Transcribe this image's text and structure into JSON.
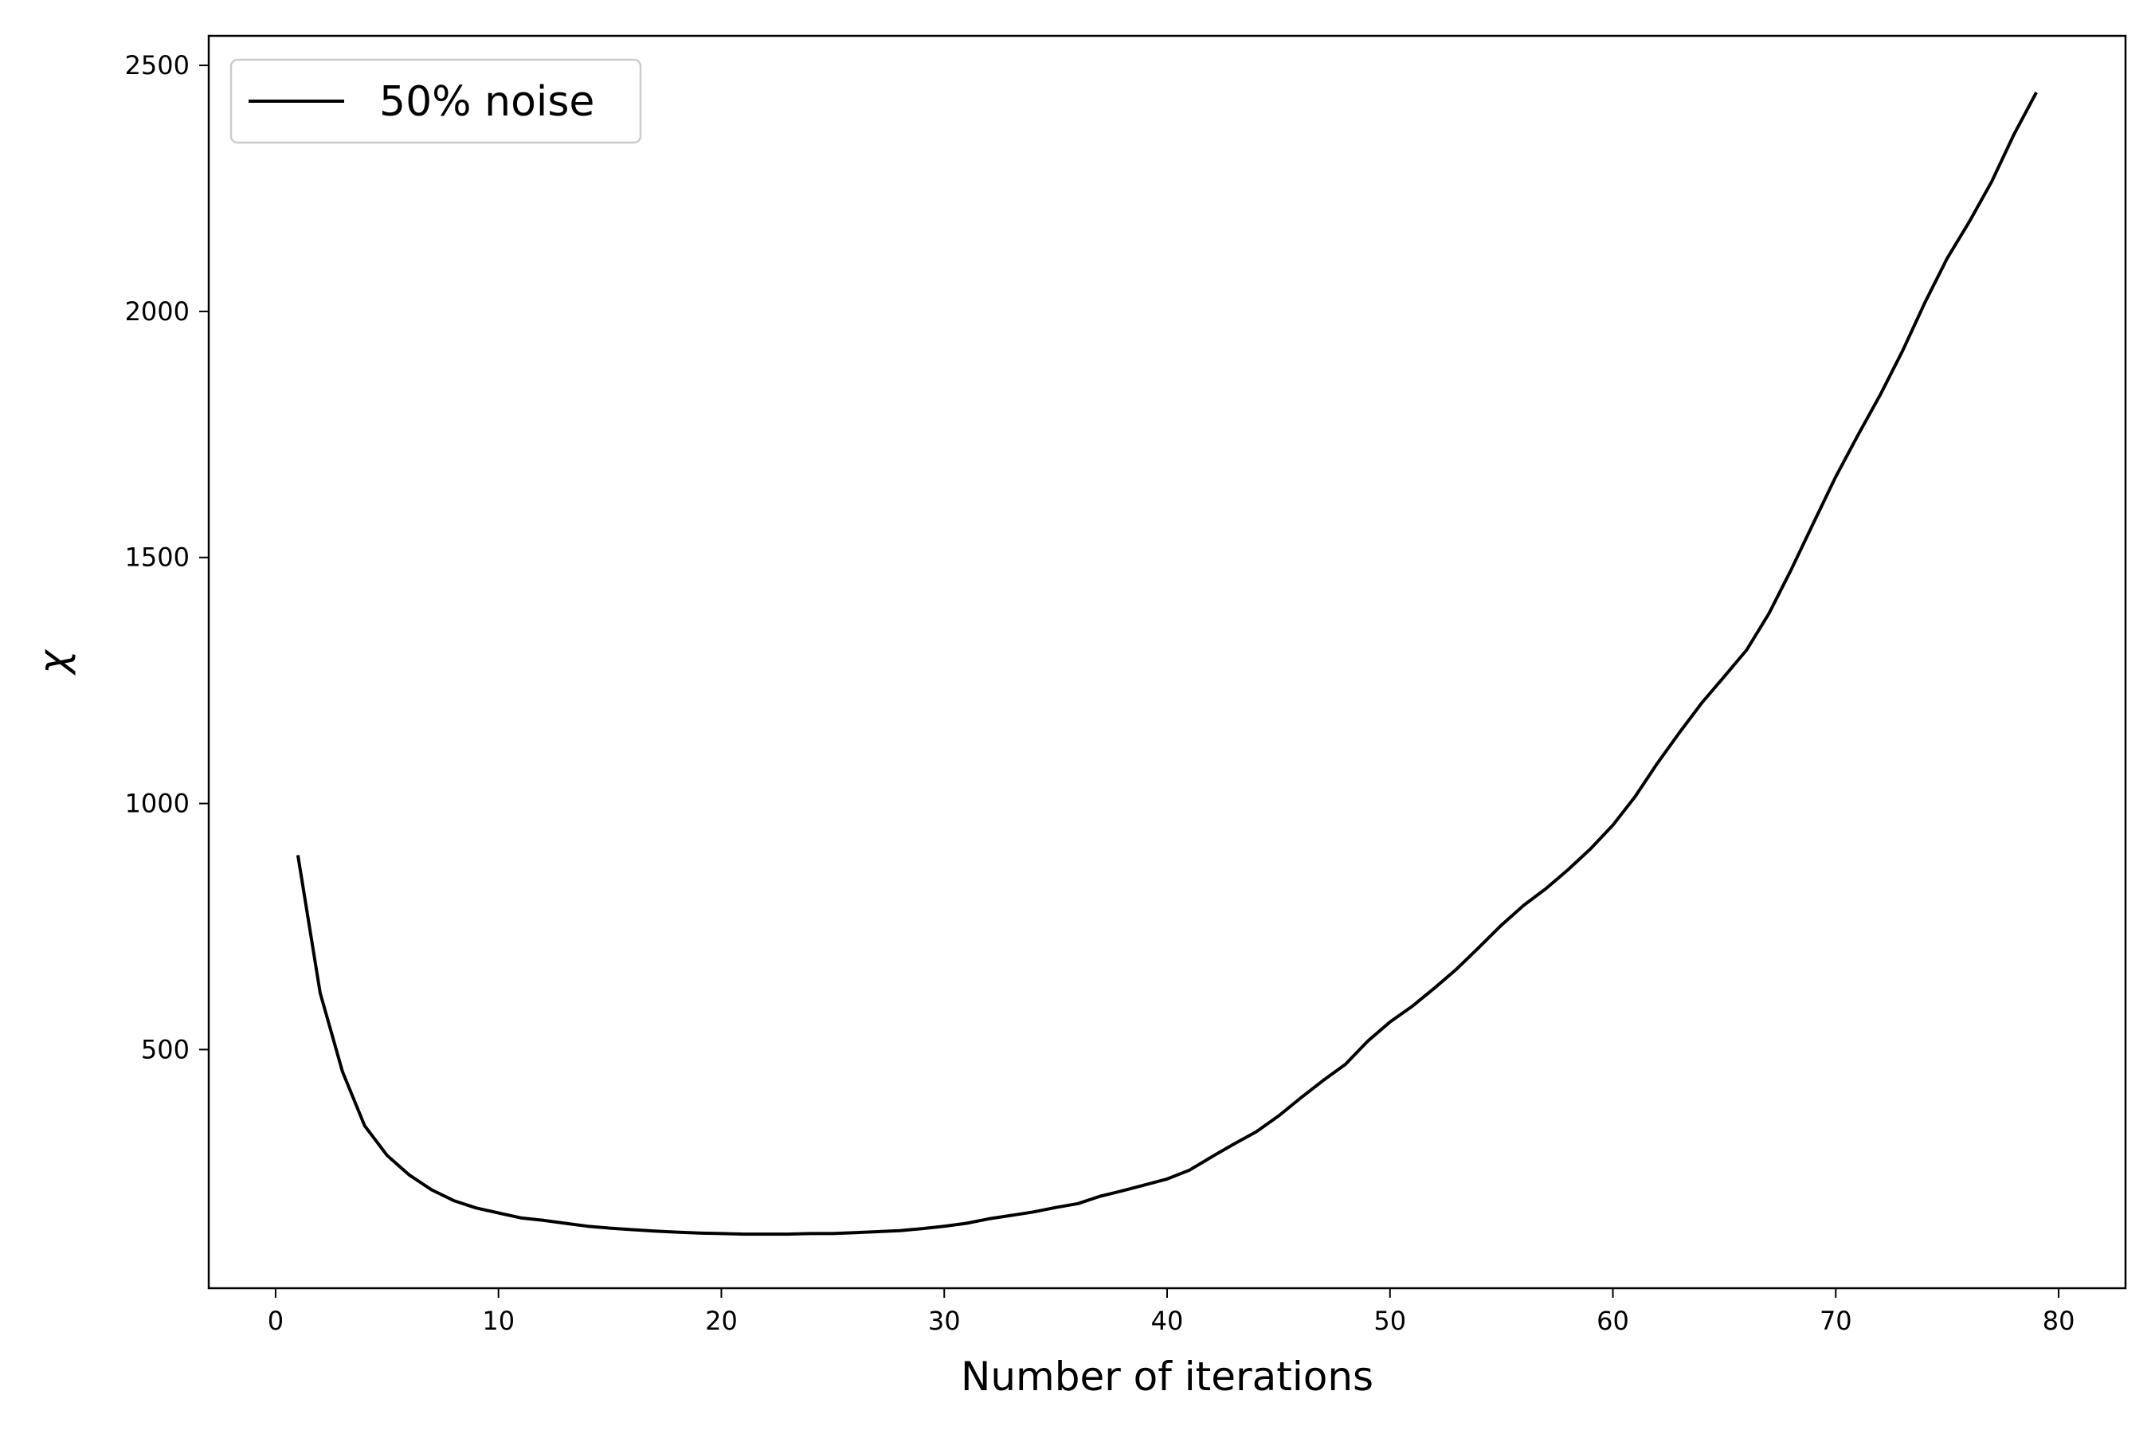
{
  "chart_data": {
    "type": "line",
    "xlabel": "Number of iterations",
    "ylabel": "χ",
    "xlim": [
      -3,
      83
    ],
    "ylim": [
      15,
      2560
    ],
    "xticks": [
      0,
      10,
      20,
      30,
      40,
      50,
      60,
      70,
      80
    ],
    "yticks": [
      500,
      1000,
      1500,
      2000,
      2500
    ],
    "grid": false,
    "legend_position": "top-left",
    "series": [
      {
        "name": "50% noise",
        "color": "#000000",
        "x": [
          1,
          2,
          3,
          4,
          5,
          6,
          7,
          8,
          9,
          10,
          11,
          12,
          13,
          14,
          15,
          16,
          17,
          18,
          19,
          20,
          21,
          22,
          23,
          24,
          25,
          26,
          27,
          28,
          29,
          30,
          31,
          32,
          33,
          34,
          35,
          36,
          37,
          38,
          39,
          40,
          41,
          42,
          43,
          44,
          45,
          46,
          47,
          48,
          49,
          50,
          51,
          52,
          53,
          54,
          55,
          56,
          57,
          58,
          59,
          60,
          61,
          62,
          63,
          64,
          65,
          66,
          67,
          68,
          69,
          70,
          71,
          72,
          73,
          74,
          75,
          76,
          77,
          78,
          79
        ],
        "y": [
          895,
          615,
          455,
          345,
          285,
          245,
          215,
          193,
          178,
          168,
          158,
          153,
          147,
          141,
          137,
          134,
          131,
          129,
          127,
          126,
          125,
          125,
          125,
          126,
          126,
          128,
          130,
          132,
          136,
          141,
          147,
          156,
          163,
          170,
          179,
          187,
          202,
          213,
          225,
          237,
          255,
          282,
          308,
          333,
          365,
          402,
          437,
          470,
          517,
          556,
          588,
          625,
          664,
          708,
          753,
          793,
          827,
          866,
          908,
          956,
          1014,
          1082,
          1145,
          1205,
          1258,
          1312,
          1386,
          1475,
          1570,
          1664,
          1749,
          1831,
          1920,
          2018,
          2108,
          2183,
          2264,
          2360,
          2445
        ]
      }
    ]
  }
}
